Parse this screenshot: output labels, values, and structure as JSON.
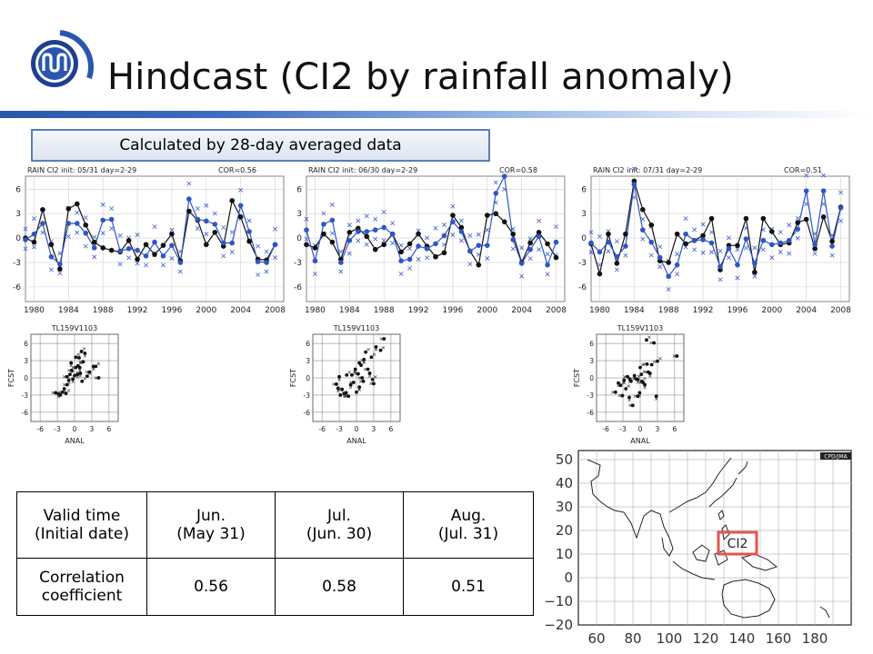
{
  "slide": {
    "title": "Hindcast (CI2 by rainfall anomaly)",
    "note": "Calculated by 28-day averaged data",
    "colors": {
      "accent_blue": "#2f55c8",
      "black_series": "#111111",
      "highlight": "#e4554d"
    }
  },
  "chart_data": [
    {
      "type": "line",
      "title": "RAIN  CI2   init: 05/31  day=2-29",
      "cor_label": "COR=0.56",
      "x": [
        1979,
        1980,
        1981,
        1982,
        1983,
        1984,
        1985,
        1986,
        1987,
        1988,
        1989,
        1990,
        1991,
        1992,
        1993,
        1994,
        1995,
        1996,
        1997,
        1998,
        1999,
        2000,
        2001,
        2002,
        2003,
        2004,
        2005,
        2006,
        2007,
        2008
      ],
      "series": [
        {
          "color": "#111111",
          "values": [
            0.0,
            -0.5,
            3.5,
            -0.8,
            -3.8,
            3.6,
            4.2,
            1.6,
            -0.5,
            -1.2,
            -1.5,
            -1.7,
            -0.3,
            -2.6,
            -0.8,
            -2.0,
            -0.9,
            0.5,
            -2.8,
            3.3,
            2.2,
            -0.8,
            0.7,
            -1.0,
            4.6,
            2.6,
            -0.4,
            -2.6,
            -2.7,
            -0.8
          ]
        },
        {
          "color": "#2f55c8",
          "values": [
            -0.2,
            0.5,
            1.8,
            -2.3,
            -3.2,
            1.8,
            1.8,
            0.6,
            -1.2,
            2.2,
            2.3,
            -1.6,
            -1.3,
            -1.5,
            -2.2,
            -0.5,
            -2.2,
            -0.9,
            -3.0,
            4.8,
            2.3,
            2.1,
            1.7,
            -0.6,
            -0.6,
            4.0,
            0.8,
            -2.9,
            -3.0,
            -0.8
          ]
        }
      ],
      "xlim": [
        1979,
        2009
      ],
      "ylim": [
        -7.8,
        7.6
      ],
      "xticks": [
        1980,
        1984,
        1988,
        1992,
        1996,
        2000,
        2004,
        2008
      ],
      "yticks": [
        6,
        3,
        0,
        -3,
        -6
      ],
      "grid": true
    },
    {
      "type": "line",
      "title": "RAIN  CI2   init: 06/30  day=2-29",
      "cor_label": "COR=0.58",
      "x": [
        1979,
        1980,
        1981,
        1982,
        1983,
        1984,
        1985,
        1986,
        1987,
        1988,
        1989,
        1990,
        1991,
        1992,
        1993,
        1994,
        1995,
        1996,
        1997,
        1998,
        1999,
        2000,
        2001,
        2002,
        2003,
        2004,
        2005,
        2006,
        2007,
        2008
      ],
      "series": [
        {
          "color": "#111111",
          "values": [
            -0.8,
            -1.2,
            0.5,
            -0.5,
            -2.6,
            0.7,
            1.2,
            0.2,
            -1.4,
            -0.8,
            0.5,
            -1.7,
            -0.7,
            0.5,
            -1.0,
            -2.3,
            -1.8,
            2.8,
            1.3,
            -1.6,
            -3.3,
            2.8,
            3.0,
            2.0,
            0.5,
            -3.0,
            -0.6,
            0.7,
            -0.7,
            -2.4
          ]
        },
        {
          "color": "#2f55c8",
          "values": [
            1.0,
            -2.8,
            1.7,
            2.2,
            -3.0,
            -0.3,
            0.8,
            0.8,
            1.0,
            1.3,
            0.5,
            -2.8,
            -2.6,
            -1.0,
            -1.3,
            -0.7,
            0.3,
            2.0,
            0.8,
            -1.6,
            -0.9,
            -0.9,
            5.5,
            7.6,
            -0.2,
            -3.1,
            -1.4,
            0.2,
            -3.3,
            -0.5
          ]
        }
      ],
      "xlim": [
        1979,
        2009
      ],
      "ylim": [
        -7.8,
        7.6
      ],
      "xticks": [
        1980,
        1984,
        1988,
        1992,
        1996,
        2000,
        2004,
        2008
      ],
      "yticks": [
        6,
        3,
        0,
        -3,
        -6
      ],
      "grid": true
    },
    {
      "type": "line",
      "title": "RAIN  CI2   init: 07/31  day=2-29",
      "cor_label": "COR=0.51",
      "x": [
        1979,
        1980,
        1981,
        1982,
        1983,
        1984,
        1985,
        1986,
        1987,
        1988,
        1989,
        1990,
        1991,
        1992,
        1993,
        1994,
        1995,
        1996,
        1997,
        1998,
        1999,
        2000,
        2001,
        2002,
        2003,
        2004,
        2005,
        2006,
        2007,
        2008
      ],
      "series": [
        {
          "color": "#111111",
          "values": [
            -0.7,
            -4.4,
            0.5,
            -3.1,
            0.5,
            7.0,
            3.5,
            1.6,
            -2.8,
            -3.0,
            0.5,
            -0.7,
            -0.3,
            0.3,
            2.4,
            -3.9,
            -0.9,
            -0.9,
            2.4,
            -4.2,
            2.4,
            0.8,
            -0.8,
            -0.6,
            1.9,
            2.3,
            -1.3,
            2.6,
            -0.4,
            3.8
          ]
        },
        {
          "color": "#2f55c8",
          "values": [
            -0.6,
            -1.7,
            -0.5,
            -2.3,
            -1.0,
            6.6,
            1.0,
            -0.5,
            -2.4,
            -4.7,
            -3.3,
            0.5,
            -0.3,
            -0.2,
            -0.6,
            -3.5,
            -1.3,
            -3.3,
            -0.1,
            -3.1,
            -0.3,
            -0.8,
            -0.6,
            -0.3,
            1.1,
            5.8,
            -0.8,
            5.8,
            -1.0,
            3.7
          ]
        }
      ],
      "xlim": [
        1979,
        2009
      ],
      "ylim": [
        -7.8,
        7.6
      ],
      "xticks": [
        1980,
        1984,
        1988,
        1992,
        1996,
        2000,
        2004,
        2008
      ],
      "yticks": [
        6,
        3,
        0,
        -3,
        -6
      ],
      "grid": true
    },
    {
      "type": "scatter",
      "title": "TL159V1103",
      "xlabel": "ANAL",
      "ylabel": "FCST",
      "points": [
        [
          -3.3,
          -2.6
        ],
        [
          -2.8,
          -2.8
        ],
        [
          -2.5,
          -3.0
        ],
        [
          -2.1,
          -2.5
        ],
        [
          -1.8,
          -1.9
        ],
        [
          -1.5,
          -2.7
        ],
        [
          -1.3,
          -1.2
        ],
        [
          -1.0,
          -0.4
        ],
        [
          -0.8,
          0.6
        ],
        [
          -0.5,
          1.3
        ],
        [
          -0.3,
          -0.2
        ],
        [
          0.0,
          0.4
        ],
        [
          0.2,
          1.8
        ],
        [
          0.5,
          0.6
        ],
        [
          0.6,
          2.1
        ],
        [
          0.8,
          3.5
        ],
        [
          1.0,
          0.8
        ],
        [
          1.3,
          -0.6
        ],
        [
          1.5,
          2.8
        ],
        [
          1.8,
          4.3
        ],
        [
          2.2,
          0.3
        ],
        [
          2.6,
          1.0
        ],
        [
          3.3,
          2.0
        ],
        [
          3.7,
          2.0
        ],
        [
          4.2,
          0.0
        ],
        [
          -0.6,
          2.6
        ],
        [
          0.2,
          3.6
        ],
        [
          -1.3,
          0.2
        ],
        [
          0.9,
          1.8
        ],
        [
          1.2,
          4.6
        ]
      ],
      "xlim": [
        -7.6,
        7.6
      ],
      "ylim": [
        -7.6,
        7.6
      ],
      "xticks": [
        -6,
        -3,
        0,
        3,
        6
      ],
      "yticks": [
        6,
        3,
        0,
        -3,
        -6
      ],
      "grid": true
    },
    {
      "type": "scatter",
      "title": "TL159V1103",
      "xlabel": "ANAL",
      "ylabel": "FCST",
      "points": [
        [
          -3.5,
          -1.1
        ],
        [
          -3.2,
          -1.8
        ],
        [
          -2.8,
          -3.0
        ],
        [
          -2.5,
          -2.0
        ],
        [
          -2.1,
          -2.8
        ],
        [
          -1.7,
          0.5
        ],
        [
          -1.4,
          -3.2
        ],
        [
          -1.0,
          -1.2
        ],
        [
          -0.8,
          0.5
        ],
        [
          -0.5,
          -0.8
        ],
        [
          -0.2,
          1.5
        ],
        [
          0.0,
          -2.5
        ],
        [
          0.3,
          0.7
        ],
        [
          0.5,
          -1.6
        ],
        [
          0.8,
          2.2
        ],
        [
          1.0,
          0.0
        ],
        [
          1.3,
          3.2
        ],
        [
          1.6,
          4.5
        ],
        [
          2.0,
          1.5
        ],
        [
          2.3,
          0.8
        ],
        [
          2.6,
          3.6
        ],
        [
          3.0,
          -1.0
        ],
        [
          3.4,
          5.4
        ],
        [
          4.2,
          4.8
        ],
        [
          4.8,
          6.8
        ],
        [
          -1.8,
          -2.6
        ],
        [
          0.5,
          2.6
        ],
        [
          1.2,
          -0.6
        ],
        [
          -3.0,
          0.2
        ],
        [
          2.8,
          -0.3
        ]
      ],
      "xlim": [
        -7.6,
        7.6
      ],
      "ylim": [
        -7.6,
        7.6
      ],
      "xticks": [
        -6,
        -3,
        0,
        3,
        6
      ],
      "yticks": [
        6,
        3,
        0,
        -3,
        -6
      ],
      "grid": true
    },
    {
      "type": "scatter",
      "title": "TL159V1103",
      "xlabel": "ANAL",
      "ylabel": "FCST",
      "points": [
        [
          -4.3,
          -2.5
        ],
        [
          -3.8,
          -0.9
        ],
        [
          -3.4,
          -1.3
        ],
        [
          -3.1,
          -3.1
        ],
        [
          -2.8,
          -0.4
        ],
        [
          -2.5,
          -1.9
        ],
        [
          -2.2,
          0.2
        ],
        [
          -1.9,
          -3.4
        ],
        [
          -1.6,
          -0.6
        ],
        [
          -1.3,
          -4.8
        ],
        [
          -1.0,
          0.4
        ],
        [
          -0.7,
          -0.2
        ],
        [
          -0.4,
          -3.2
        ],
        [
          -0.1,
          -2.6
        ],
        [
          0.2,
          0.6
        ],
        [
          0.5,
          -0.8
        ],
        [
          0.8,
          -1.2
        ],
        [
          1.1,
          6.6
        ],
        [
          1.4,
          1.0
        ],
        [
          1.7,
          0.8
        ],
        [
          2.0,
          2.3
        ],
        [
          2.4,
          6.1
        ],
        [
          2.8,
          -3.2
        ],
        [
          3.0,
          2.9
        ],
        [
          6.4,
          3.8
        ],
        [
          -0.4,
          -0.3
        ],
        [
          0.0,
          1.8
        ],
        [
          1.2,
          2.4
        ],
        [
          -1.8,
          -0.2
        ],
        [
          0.3,
          -0.6
        ]
      ],
      "xlim": [
        -7.6,
        7.6
      ],
      "ylim": [
        -7.6,
        7.6
      ],
      "xticks": [
        -6,
        -3,
        0,
        3,
        6
      ],
      "yticks": [
        6,
        3,
        0,
        -3,
        -6
      ],
      "grid": true
    }
  ],
  "table": {
    "header": [
      "Valid time\n(Initial date)",
      "Jun.\n(May 31)",
      "Jul.\n(Jun. 30)",
      "Aug.\n(Jul. 31)"
    ],
    "row": [
      "Correlation\ncoefficient",
      "0.56",
      "0.58",
      "0.51"
    ]
  },
  "map": {
    "corner_label": "CPD/JMA",
    "region_label": "CI2",
    "lat_ticks": [
      "50",
      "40",
      "30",
      "20",
      "10",
      "0",
      "−10",
      "−20"
    ],
    "lon_ticks": [
      "60",
      "80",
      "100",
      "120",
      "140",
      "160",
      "180"
    ]
  }
}
